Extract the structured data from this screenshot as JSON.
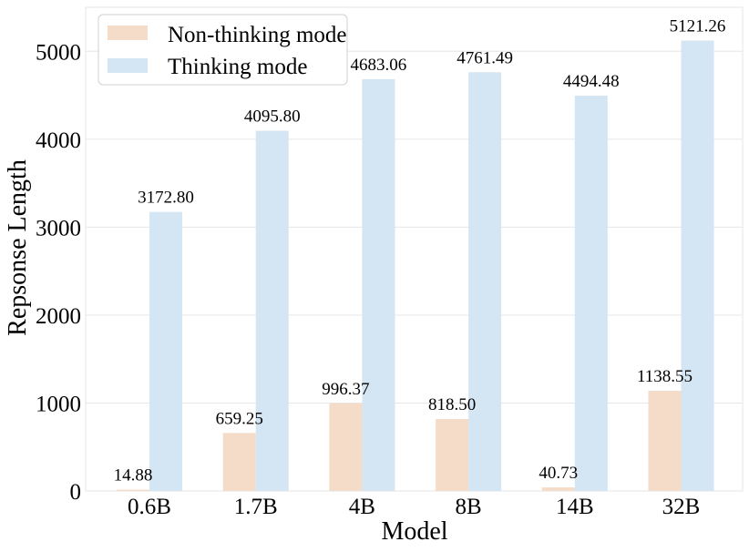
{
  "chart_data": {
    "type": "bar",
    "title": "",
    "xlabel": "Model",
    "ylabel": "Repsonse Length",
    "categories": [
      "0.6B",
      "1.7B",
      "4B",
      "8B",
      "14B",
      "32B"
    ],
    "ylim": [
      0,
      5500
    ],
    "yticks": [
      0,
      1000,
      2000,
      3000,
      4000,
      5000
    ],
    "ytick_labels": [
      "0",
      "1000",
      "2000",
      "3000",
      "4000",
      "5000"
    ],
    "grid": true,
    "legend_position": "top-left",
    "series": [
      {
        "name": "Non-thinking mode",
        "color": "#f5dcc8",
        "values": [
          14.88,
          659.25,
          996.37,
          818.5,
          40.73,
          1138.55
        ],
        "labels": [
          "14.88",
          "659.25",
          "996.37",
          "818.50",
          "40.73",
          "1138.55"
        ]
      },
      {
        "name": "Thinking mode",
        "color": "#d4e5f3",
        "values": [
          3172.8,
          4095.8,
          4683.06,
          4761.49,
          4494.48,
          5121.26
        ],
        "labels": [
          "3172.80",
          "4095.80",
          "4683.06",
          "4761.49",
          "4494.48",
          "5121.26"
        ]
      }
    ]
  }
}
